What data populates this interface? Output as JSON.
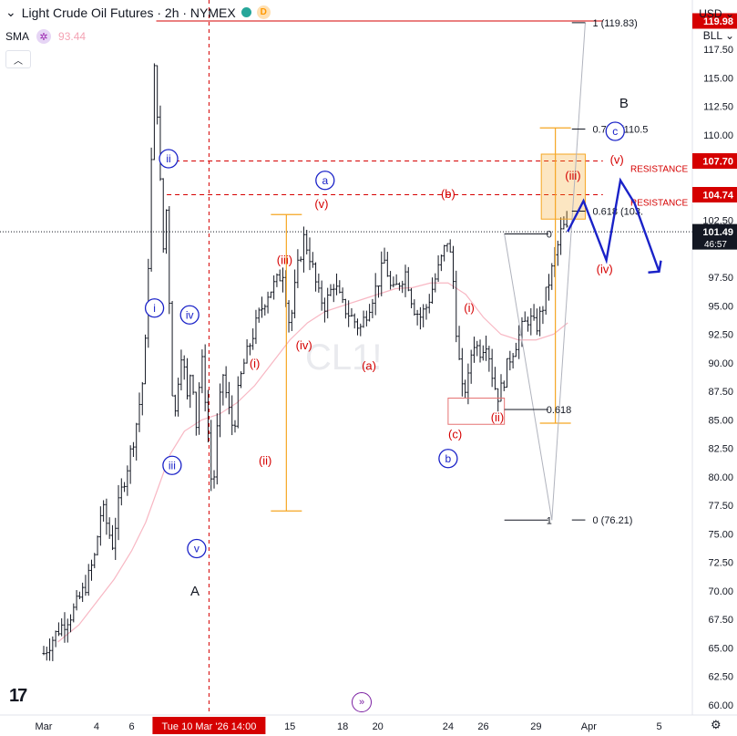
{
  "header": {
    "title": "Light Crude Oil Futures · 2h · NYMEX",
    "badge_d": "D",
    "sma_label": "SMA",
    "sma_value": "93.44",
    "currency": "USD",
    "unit": "BLL"
  },
  "colors": {
    "red": "#d50000",
    "blue": "#1a22c8",
    "orange": "#f5a623",
    "sma": "#f8b7c3",
    "candle": "#131722"
  },
  "chart_data": {
    "type": "candlestick",
    "symbol": "CL1!",
    "ylim": [
      59.5,
      121.5
    ],
    "y_ticks": [
      60.0,
      62.5,
      65.0,
      67.5,
      70.0,
      72.5,
      75.0,
      77.5,
      80.0,
      82.5,
      85.0,
      87.5,
      90.0,
      92.5,
      95.0,
      97.5,
      102.5,
      105.0,
      110.0,
      112.5,
      115.0,
      117.5
    ],
    "x_ticks": [
      {
        "label": "Mar",
        "day": 0
      },
      {
        "label": "4",
        "day": 3
      },
      {
        "label": "6",
        "day": 5
      },
      {
        "label": "15",
        "day": 14
      },
      {
        "label": "18",
        "day": 17
      },
      {
        "label": "20",
        "day": 19
      },
      {
        "label": "24",
        "day": 23
      },
      {
        "label": "26",
        "day": 25
      },
      {
        "label": "29",
        "day": 28
      },
      {
        "label": "Apr",
        "day": 31
      },
      {
        "label": "5",
        "day": 35
      }
    ],
    "crosshair": {
      "label": "Tue 10 Mar '26   14:00",
      "day": 9.4
    },
    "price_labels": [
      {
        "value": 119.98,
        "text": "119.98",
        "color": "#d50000"
      },
      {
        "value": 107.7,
        "text": "107.70",
        "color": "#d50000"
      },
      {
        "value": 104.74,
        "text": "104.74",
        "color": "#d50000"
      },
      {
        "value": 101.49,
        "text": "101.49",
        "color": "#131722"
      }
    ],
    "countdown": "46:57",
    "path": [
      [
        0,
        64.5
      ],
      [
        0.8,
        66.5
      ],
      [
        1.6,
        68
      ],
      [
        2.4,
        70.5
      ],
      [
        2.9,
        73
      ],
      [
        3.3,
        77.5
      ],
      [
        3.9,
        74
      ],
      [
        4.3,
        78
      ],
      [
        4.7,
        80.5
      ],
      [
        5.2,
        84
      ],
      [
        5.6,
        88
      ],
      [
        5.8,
        92
      ],
      [
        6,
        101
      ],
      [
        6.2,
        112
      ],
      [
        6.35,
        118
      ],
      [
        6.5,
        110
      ],
      [
        6.8,
        100
      ],
      [
        7,
        104
      ],
      [
        7.2,
        92
      ],
      [
        7.4,
        84
      ],
      [
        7.6,
        88
      ],
      [
        7.9,
        92
      ],
      [
        8.1,
        86
      ],
      [
        8.4,
        90
      ],
      [
        8.7,
        84
      ],
      [
        8.95,
        91
      ],
      [
        9.3,
        85
      ],
      [
        9.6,
        78
      ],
      [
        9.9,
        85
      ],
      [
        10.2,
        89
      ],
      [
        10.5,
        86
      ],
      [
        10.8,
        84
      ],
      [
        11.1,
        88
      ],
      [
        11.4,
        90
      ],
      [
        11.8,
        92
      ],
      [
        12.2,
        94
      ],
      [
        12.7,
        96
      ],
      [
        13.2,
        97
      ],
      [
        13.6,
        98
      ],
      [
        14.0,
        93
      ],
      [
        14.4,
        98
      ],
      [
        14.8,
        101
      ],
      [
        15.2,
        99
      ],
      [
        15.6,
        96
      ],
      [
        16,
        95
      ],
      [
        16.5,
        97
      ],
      [
        17,
        95
      ],
      [
        17.5,
        94
      ],
      [
        18,
        93
      ],
      [
        18.5,
        95
      ],
      [
        19,
        97
      ],
      [
        19.4,
        99
      ],
      [
        19.8,
        96
      ],
      [
        20.2,
        97
      ],
      [
        20.6,
        98
      ],
      [
        21,
        95
      ],
      [
        21.4,
        94
      ],
      [
        21.8,
        95
      ],
      [
        22.2,
        97
      ],
      [
        22.6,
        99
      ],
      [
        23,
        101
      ],
      [
        23.3,
        97
      ],
      [
        23.5,
        92
      ],
      [
        23.8,
        87.5
      ],
      [
        24.1,
        88
      ],
      [
        24.4,
        92
      ],
      [
        24.8,
        91
      ],
      [
        25.2,
        92
      ],
      [
        25.5,
        89
      ],
      [
        25.8,
        87
      ],
      [
        26.1,
        88
      ],
      [
        26.4,
        90
      ],
      [
        26.8,
        91.5
      ],
      [
        27.2,
        93
      ],
      [
        27.6,
        94
      ],
      [
        28,
        93
      ],
      [
        28.4,
        95
      ],
      [
        28.8,
        97.5
      ],
      [
        29.2,
        100
      ],
      [
        29.5,
        102
      ],
      [
        29.8,
        101.5
      ]
    ],
    "sma_path": [
      [
        0.8,
        65.5
      ],
      [
        2,
        67
      ],
      [
        3,
        69
      ],
      [
        4,
        71
      ],
      [
        5,
        73.5
      ],
      [
        5.8,
        76
      ],
      [
        6.5,
        79
      ],
      [
        7.2,
        82
      ],
      [
        8,
        84
      ],
      [
        9,
        85
      ],
      [
        10,
        85.5
      ],
      [
        11,
        86.5
      ],
      [
        12,
        88
      ],
      [
        13,
        90
      ],
      [
        14,
        92
      ],
      [
        15,
        93.5
      ],
      [
        16,
        94.5
      ],
      [
        17,
        95
      ],
      [
        18,
        95.5
      ],
      [
        19,
        96
      ],
      [
        20,
        96.5
      ],
      [
        21,
        96.6
      ],
      [
        22,
        97
      ],
      [
        23,
        97
      ],
      [
        24,
        96
      ],
      [
        25,
        94
      ],
      [
        26,
        92.5
      ],
      [
        27,
        92
      ],
      [
        28,
        92
      ],
      [
        29,
        92.5
      ],
      [
        29.8,
        93.5
      ]
    ],
    "key_levels": [
      {
        "name": "level-119-98",
        "y": 119.98,
        "x1": 6.4,
        "x2": 31.8,
        "style": "solid",
        "color": "#d50000"
      },
      {
        "name": "resistance-upper",
        "y": 107.7,
        "x1": 7.0,
        "x2": 31.8,
        "style": "dashed",
        "color": "#d50000",
        "label": "RESISTANCE"
      },
      {
        "name": "resistance-lower",
        "y": 104.74,
        "x1": 7.0,
        "x2": 31.8,
        "style": "dashed",
        "color": "#d50000",
        "label": "RESISTANCE"
      }
    ],
    "fib_lines": [
      {
        "y": 119.83,
        "x1": 28.9,
        "x2": 30.8,
        "label": "1 (119.83)"
      },
      {
        "y": 110.5,
        "x1": 28.9,
        "x2": 30.8,
        "label": "0.786 (110.5"
      },
      {
        "y": 103.3,
        "x1": 28.9,
        "x2": 30.8,
        "label": "0.618 (103."
      },
      {
        "y": 76.21,
        "x1": 28.9,
        "x2": 30.8,
        "label": "0 (76.21)"
      }
    ],
    "fib_left": [
      {
        "y": 101.3,
        "x1": 26.2,
        "x2": 28.9,
        "label": "0"
      },
      {
        "y": 85.9,
        "x1": 26.2,
        "x2": 28.9,
        "label": "0.618"
      },
      {
        "y": 76.2,
        "x1": 26.2,
        "x2": 28.9,
        "label": "1"
      }
    ],
    "fib_connectors": [
      [
        26.2,
        101.3,
        28.9,
        76.2
      ],
      [
        28.9,
        76.2,
        30.8,
        119.83
      ]
    ],
    "vertical_targets": [
      {
        "x": 13.8,
        "y_top": 103.0,
        "y_bot": 77.0
      },
      {
        "x": 29.1,
        "y_top": 110.6,
        "y_bot": 84.7
      }
    ],
    "boxes": [
      {
        "name": "target-zone",
        "x1": 28.3,
        "x2": 30.8,
        "y_top": 108.3,
        "y_bot": 102.6,
        "fill": "rgba(245,166,35,0.28)",
        "stroke": "#f5a623"
      },
      {
        "name": "b-wave-box",
        "x1": 23.0,
        "x2": 26.2,
        "y_top": 86.9,
        "y_bot": 84.6,
        "fill": "rgba(0,0,0,0)",
        "stroke": "#e57373"
      }
    ],
    "projection": [
      [
        29.8,
        101.5
      ],
      [
        30.7,
        104.2
      ],
      [
        32.0,
        99.0
      ],
      [
        32.8,
        106.0
      ],
      [
        33.6,
        104.0
      ],
      [
        35.0,
        98.0
      ]
    ],
    "labels": [
      {
        "text": "ii",
        "x": 7.1,
        "y": 107.9,
        "kind": "circle"
      },
      {
        "text": "i",
        "x": 6.3,
        "y": 94.8,
        "kind": "circle"
      },
      {
        "text": "iv",
        "x": 8.3,
        "y": 94.2,
        "kind": "circle"
      },
      {
        "text": "iii",
        "x": 7.3,
        "y": 81.0,
        "kind": "circle"
      },
      {
        "text": "v",
        "x": 8.7,
        "y": 73.7,
        "kind": "circle"
      },
      {
        "text": "a",
        "x": 16.0,
        "y": 106.0,
        "kind": "circle"
      },
      {
        "text": "b",
        "x": 23.0,
        "y": 81.6,
        "kind": "circle"
      },
      {
        "text": "c",
        "x": 32.5,
        "y": 110.3,
        "kind": "circle"
      },
      {
        "text": "(v)",
        "x": 15.8,
        "y": 103.9,
        "kind": "red"
      },
      {
        "text": "(iii)",
        "x": 13.7,
        "y": 99.0,
        "kind": "red"
      },
      {
        "text": "(iv)",
        "x": 14.8,
        "y": 91.5,
        "kind": "red"
      },
      {
        "text": "(i)",
        "x": 12.0,
        "y": 89.9,
        "kind": "red"
      },
      {
        "text": "(ii)",
        "x": 12.6,
        "y": 81.4,
        "kind": "red"
      },
      {
        "text": "(a)",
        "x": 18.5,
        "y": 89.7,
        "kind": "red"
      },
      {
        "text": "(b)",
        "x": 23.0,
        "y": 104.8,
        "kind": "red"
      },
      {
        "text": "(c)",
        "x": 23.4,
        "y": 83.7,
        "kind": "red"
      },
      {
        "text": "(i)",
        "x": 24.2,
        "y": 94.8,
        "kind": "red"
      },
      {
        "text": "(ii)",
        "x": 25.8,
        "y": 85.2,
        "kind": "red"
      },
      {
        "text": "(iii)",
        "x": 30.1,
        "y": 106.4,
        "kind": "red"
      },
      {
        "text": "(v)",
        "x": 32.6,
        "y": 107.8,
        "kind": "red"
      },
      {
        "text": "(iv)",
        "x": 31.9,
        "y": 98.2,
        "kind": "red"
      },
      {
        "text": "A",
        "x": 8.6,
        "y": 70.0,
        "kind": "black"
      },
      {
        "text": "B",
        "x": 33.0,
        "y": 112.8,
        "kind": "black"
      }
    ]
  }
}
